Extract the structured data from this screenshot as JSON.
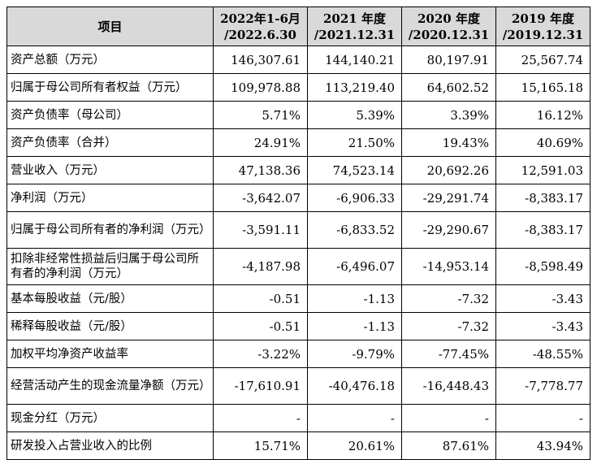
{
  "table": {
    "headers": [
      {
        "line1": "项目",
        "line2": ""
      },
      {
        "line1": "2022年1-6月",
        "line2": "/2022.6.30"
      },
      {
        "line1": "2021 年度",
        "line2": "/2021.12.31"
      },
      {
        "line1": "2020 年度",
        "line2": "/2020.12.31"
      },
      {
        "line1": "2019 年度",
        "line2": "/2019.12.31"
      }
    ],
    "rows": [
      {
        "label": "资产总额（万元）",
        "values": [
          "146,307.61",
          "144,140.21",
          "80,197.91",
          "25,567.74"
        ]
      },
      {
        "label": "归属于母公司所有者权益（万元）",
        "values": [
          "109,978.88",
          "113,219.40",
          "64,602.52",
          "15,165.18"
        ]
      },
      {
        "label": "资产负债率（母公司）",
        "values": [
          "5.71%",
          "5.39%",
          "3.39%",
          "16.12%"
        ]
      },
      {
        "label": "资产负债率（合并）",
        "values": [
          "24.91%",
          "21.50%",
          "19.43%",
          "40.69%"
        ]
      },
      {
        "label": "营业收入（万元）",
        "values": [
          "47,138.36",
          "74,523.14",
          "20,692.26",
          "12,591.03"
        ]
      },
      {
        "label": "净利润（万元）",
        "values": [
          "-3,642.07",
          "-6,906.33",
          "-29,291.74",
          "-8,383.17"
        ]
      },
      {
        "label": "归属于母公司所有者的净利润（万元）",
        "values": [
          "-3,591.11",
          "-6,833.52",
          "-29,290.67",
          "-8,383.17"
        ]
      },
      {
        "label": "扣除非经常性损益后归属于母公司所有者的净利润（万元）",
        "values": [
          "-4,187.98",
          "-6,496.07",
          "-14,953.14",
          "-8,598.49"
        ]
      },
      {
        "label": "基本每股收益（元/股）",
        "values": [
          "-0.51",
          "-1.13",
          "-7.32",
          "-3.43"
        ]
      },
      {
        "label": "稀释每股收益（元/股）",
        "values": [
          "-0.51",
          "-1.13",
          "-7.32",
          "-3.43"
        ]
      },
      {
        "label": "加权平均净资产收益率",
        "values": [
          "-3.22%",
          "-9.79%",
          "-77.45%",
          "-48.55%"
        ]
      },
      {
        "label": "经营活动产生的现金流量净额（万元）",
        "values": [
          "-17,610.91",
          "-40,476.18",
          "-16,448.43",
          "-7,778.77"
        ]
      },
      {
        "label": "现金分红（万元）",
        "values": [
          "-",
          "-",
          "-",
          "-"
        ]
      },
      {
        "label": "研发投入占营业收入的比例",
        "values": [
          "15.71%",
          "20.61%",
          "87.61%",
          "43.94%"
        ]
      }
    ]
  }
}
